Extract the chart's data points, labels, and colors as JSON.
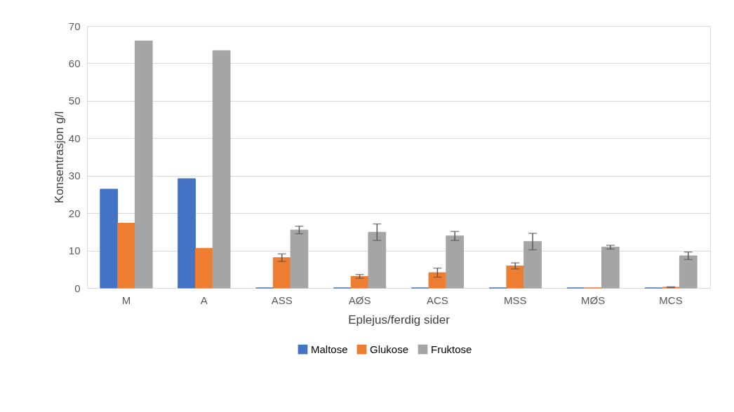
{
  "chart_data": {
    "type": "bar",
    "xlabel": "Eplejus/ferdig sider",
    "ylabel": "Konsentrasjon g/l",
    "categories": [
      "M",
      "A",
      "ASS",
      "AØS",
      "ACS",
      "MSS",
      "MØS",
      "MCS"
    ],
    "series": [
      {
        "name": "Maltose",
        "color": "#4472c4",
        "values": [
          26.4,
          29.2,
          0,
          0,
          0,
          0,
          0,
          0
        ]
      },
      {
        "name": "Glukose",
        "color": "#ed7d31",
        "values": [
          17.3,
          10.6,
          8.1,
          3.1,
          4.1,
          5.9,
          0,
          0.2
        ],
        "errors": [
          null,
          null,
          1,
          0.5,
          1.2,
          0.8,
          null,
          0.1
        ]
      },
      {
        "name": "Fruktose",
        "color": "#a5a5a5",
        "values": [
          66,
          63.4,
          15.5,
          14.9,
          13.9,
          12.4,
          10.9,
          8.6
        ],
        "errors": [
          null,
          null,
          1,
          2.2,
          1.2,
          2.2,
          0.5,
          1
        ]
      }
    ],
    "ylim": [
      0,
      70
    ],
    "yticks": [
      0,
      10,
      20,
      30,
      40,
      50,
      60,
      70
    ],
    "grid": "y",
    "legend": "bottom"
  }
}
